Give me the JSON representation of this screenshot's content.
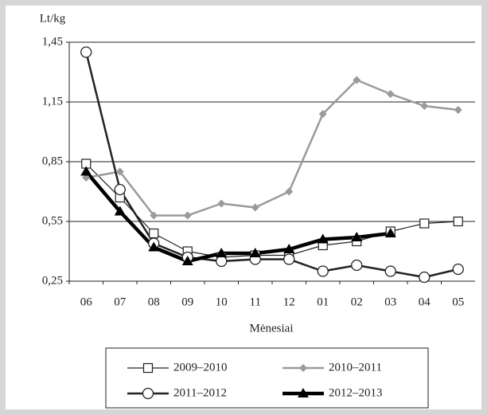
{
  "chart_data": {
    "type": "line",
    "y_label": "Lt/kg",
    "x_label": "Mėnesiai",
    "categories": [
      "06",
      "07",
      "08",
      "09",
      "10",
      "11",
      "12",
      "01",
      "02",
      "03",
      "04",
      "05"
    ],
    "series": [
      {
        "name": "2009–2010",
        "color": "#222222",
        "marker": "square",
        "line_width": 1.2,
        "values": [
          0.84,
          0.67,
          0.49,
          0.4,
          0.37,
          0.38,
          0.38,
          0.43,
          0.45,
          0.5,
          0.54,
          0.55
        ]
      },
      {
        "name": "2010–2011",
        "color": "#9a9a9a",
        "marker": "diamond",
        "line_width": 2.5,
        "values": [
          0.77,
          0.8,
          0.58,
          0.58,
          0.64,
          0.62,
          0.7,
          1.09,
          1.26,
          1.19,
          1.13,
          1.11
        ]
      },
      {
        "name": "2011–2012",
        "color": "#222222",
        "marker": "circle",
        "line_width": 2.5,
        "values": [
          1.4,
          0.71,
          0.44,
          0.37,
          0.35,
          0.36,
          0.36,
          0.3,
          0.33,
          0.3,
          0.27,
          0.31
        ]
      },
      {
        "name": "2012–2013",
        "color": "#000000",
        "marker": "triangle",
        "line_width": 4.5,
        "values": [
          0.8,
          0.6,
          0.42,
          0.35,
          0.39,
          0.39,
          0.41,
          0.46,
          0.47,
          0.49,
          null,
          null
        ]
      }
    ],
    "ylim": [
      0.25,
      1.45
    ],
    "yticks": [
      {
        "value": 0.25,
        "label": "0,25"
      },
      {
        "value": 0.55,
        "label": "0,55"
      },
      {
        "value": 0.85,
        "label": "0,85"
      },
      {
        "value": 1.15,
        "label": "1,15"
      },
      {
        "value": 1.45,
        "label": "1,45"
      }
    ],
    "grid": true,
    "legend": "bottom"
  }
}
